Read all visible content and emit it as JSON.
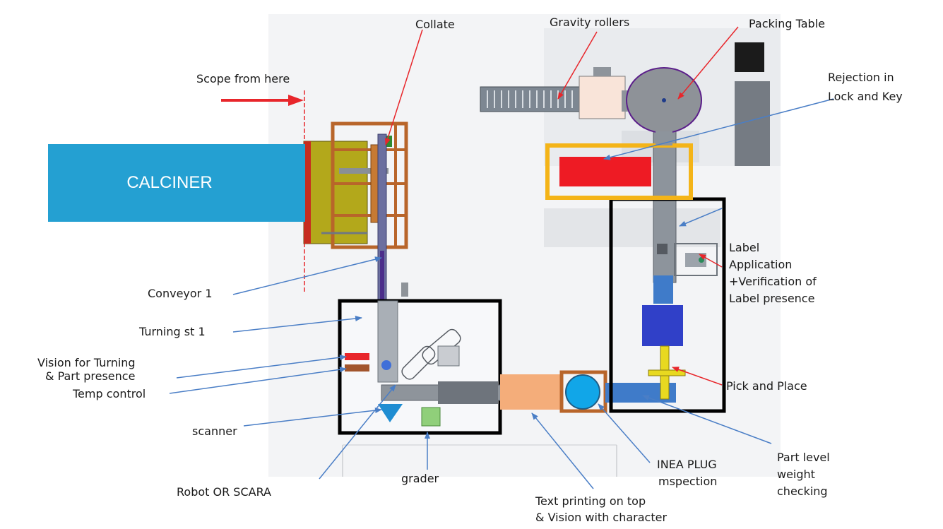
{
  "labels": {
    "collate": "Collate",
    "gravity_rollers": "Gravity rollers",
    "packing_table": "Packing Table",
    "scope_from_here": "Scope from here",
    "rejection_line1": "Rejection in",
    "rejection_line2": "Lock and Key",
    "calciner": "CALCINER",
    "label_app_line1": "Label",
    "label_app_line2": "Application",
    "label_app_line3": "+Verification of",
    "label_app_line4": "Label presence",
    "conveyor1": "Conveyor 1",
    "turning_st1": "Turning st 1",
    "vision_line1": "Vision for Turning",
    "vision_line2": "& Part presence",
    "temp_control": "Temp control",
    "pick_and_place": "Pick and Place",
    "scanner": "scanner",
    "part_level_line1": "Part level",
    "part_level_line2": "weight",
    "part_level_line3": "checking",
    "inea_line1": "INEA PLUG",
    "inea_line2": "mspection",
    "robot": "Robot OR SCARA",
    "grader": "grader",
    "text_print_line1": "Text printing on top",
    "text_print_line2": "& Vision with  character"
  },
  "colors": {
    "calciner": "#24a0d2",
    "red_arrow": "#e8262b",
    "blue_arrow": "#4a7ec6",
    "black_box": "#000000",
    "orange_box": "#f4b418",
    "frame_brown": "#b8652a",
    "conveyor_grey": "#9aa3ad",
    "rejection_bin": "#ee1b24"
  }
}
